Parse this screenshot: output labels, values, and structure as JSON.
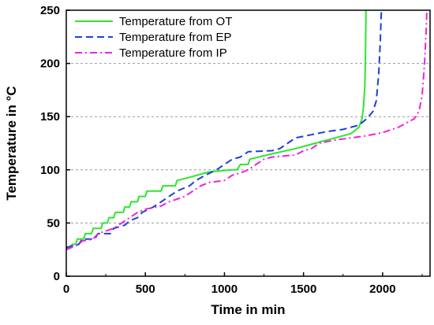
{
  "chart_data": {
    "type": "line",
    "xlabel": "Time in min",
    "ylabel": "Temperature in °C",
    "xlim": [
      0,
      2300
    ],
    "ylim": [
      0,
      250
    ],
    "xticks": [
      0,
      500,
      1000,
      1500,
      2000
    ],
    "yticks": [
      0,
      50,
      100,
      150,
      200,
      250
    ],
    "grid": "horizontal dashed",
    "legend_position": "top-left",
    "series": [
      {
        "name": "Temperature from OT",
        "color": "#2ee62e",
        "style": "solid",
        "points": [
          [
            0,
            25
          ],
          [
            40,
            30
          ],
          [
            60,
            30
          ],
          [
            70,
            35
          ],
          [
            110,
            35
          ],
          [
            120,
            40
          ],
          [
            160,
            40
          ],
          [
            170,
            45
          ],
          [
            220,
            45
          ],
          [
            230,
            50
          ],
          [
            260,
            50
          ],
          [
            270,
            55
          ],
          [
            300,
            55
          ],
          [
            310,
            60
          ],
          [
            360,
            60
          ],
          [
            370,
            65
          ],
          [
            400,
            65
          ],
          [
            410,
            70
          ],
          [
            450,
            70
          ],
          [
            460,
            75
          ],
          [
            500,
            75
          ],
          [
            510,
            80
          ],
          [
            600,
            80
          ],
          [
            610,
            85
          ],
          [
            690,
            85
          ],
          [
            700,
            90
          ],
          [
            780,
            93
          ],
          [
            900,
            98
          ],
          [
            1050,
            100
          ],
          [
            1080,
            100
          ],
          [
            1100,
            105
          ],
          [
            1150,
            105
          ],
          [
            1160,
            110
          ],
          [
            1300,
            115
          ],
          [
            1450,
            120
          ],
          [
            1600,
            126
          ],
          [
            1800,
            134
          ],
          [
            1850,
            140
          ],
          [
            1870,
            148
          ],
          [
            1880,
            160
          ],
          [
            1888,
            180
          ],
          [
            1892,
            210
          ],
          [
            1895,
            250
          ]
        ]
      },
      {
        "name": "Temperature from EP",
        "color": "#1f3fd6",
        "style": "dashed",
        "points": [
          [
            0,
            27
          ],
          [
            80,
            30
          ],
          [
            100,
            35
          ],
          [
            180,
            35
          ],
          [
            200,
            40
          ],
          [
            280,
            40
          ],
          [
            300,
            45
          ],
          [
            370,
            48
          ],
          [
            400,
            52
          ],
          [
            450,
            55
          ],
          [
            480,
            60
          ],
          [
            550,
            65
          ],
          [
            600,
            70
          ],
          [
            700,
            80
          ],
          [
            780,
            85
          ],
          [
            820,
            90
          ],
          [
            880,
            95
          ],
          [
            950,
            100
          ],
          [
            1000,
            105
          ],
          [
            1050,
            110
          ],
          [
            1100,
            112
          ],
          [
            1150,
            117
          ],
          [
            1300,
            118
          ],
          [
            1350,
            120
          ],
          [
            1400,
            125
          ],
          [
            1450,
            130
          ],
          [
            1550,
            133
          ],
          [
            1650,
            136
          ],
          [
            1750,
            138
          ],
          [
            1850,
            142
          ],
          [
            1900,
            148
          ],
          [
            1940,
            155
          ],
          [
            1960,
            165
          ],
          [
            1975,
            190
          ],
          [
            1985,
            220
          ],
          [
            1992,
            250
          ]
        ]
      },
      {
        "name": "Temperature from IP",
        "color": "#ee22dd",
        "style": "dashdot",
        "points": [
          [
            0,
            25
          ],
          [
            50,
            28
          ],
          [
            80,
            30
          ],
          [
            100,
            33
          ],
          [
            170,
            35
          ],
          [
            200,
            40
          ],
          [
            300,
            45
          ],
          [
            350,
            50
          ],
          [
            400,
            55
          ],
          [
            450,
            60
          ],
          [
            500,
            63
          ],
          [
            600,
            66
          ],
          [
            650,
            70
          ],
          [
            750,
            75
          ],
          [
            800,
            80
          ],
          [
            850,
            85
          ],
          [
            900,
            88
          ],
          [
            1000,
            90
          ],
          [
            1050,
            95
          ],
          [
            1100,
            97
          ],
          [
            1150,
            100
          ],
          [
            1200,
            105
          ],
          [
            1250,
            110
          ],
          [
            1300,
            112
          ],
          [
            1450,
            114
          ],
          [
            1500,
            118
          ],
          [
            1550,
            120
          ],
          [
            1600,
            125
          ],
          [
            1700,
            128
          ],
          [
            1800,
            130
          ],
          [
            1900,
            132
          ],
          [
            2000,
            135
          ],
          [
            2100,
            140
          ],
          [
            2150,
            144
          ],
          [
            2200,
            148
          ],
          [
            2230,
            155
          ],
          [
            2250,
            170
          ],
          [
            2265,
            200
          ],
          [
            2275,
            230
          ],
          [
            2280,
            250
          ]
        ]
      }
    ]
  }
}
